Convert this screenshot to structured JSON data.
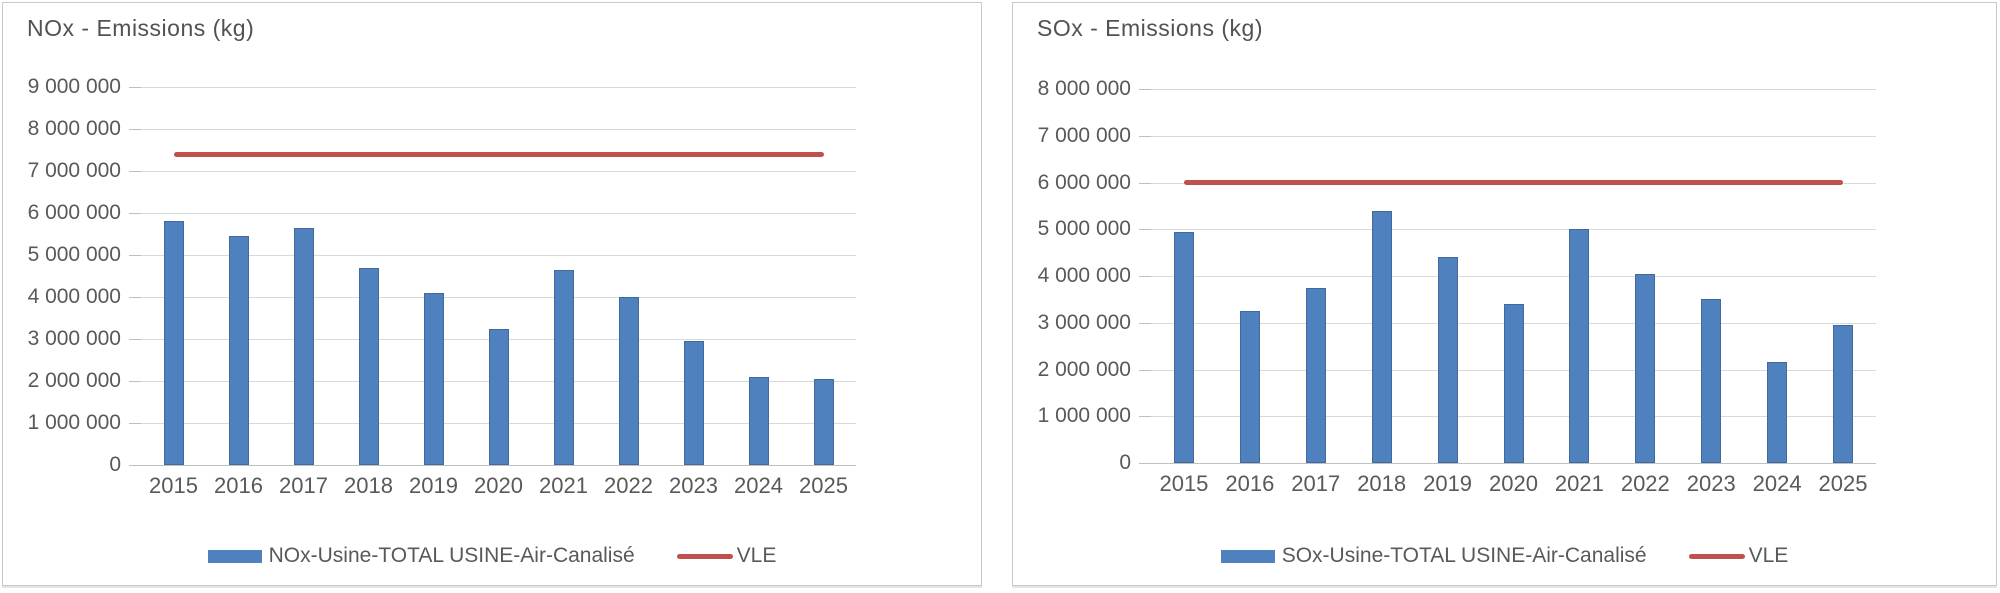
{
  "styles": {
    "bar_color": "#4E81BD",
    "line_color": "#C0504D",
    "grid_color": "#D9D9D9",
    "axis_color": "#BFBFBF",
    "text_color": "#595959"
  },
  "chart_data": [
    {
      "type": "bar",
      "title": "NOx - Emissions (kg)",
      "xlabel": "",
      "ylabel": "",
      "grid": true,
      "legend_position": "bottom",
      "categories": [
        "2015",
        "2016",
        "2017",
        "2018",
        "2019",
        "2020",
        "2021",
        "2022",
        "2023",
        "2024",
        "2025"
      ],
      "series": [
        {
          "name": "NOx-Usine-TOTAL USINE-Air-Canalisé",
          "type": "bar",
          "color": "#4E81BD",
          "values": [
            5800000,
            5450000,
            5650000,
            4700000,
            4100000,
            3250000,
            4650000,
            4000000,
            2950000,
            2100000,
            2050000
          ]
        },
        {
          "name": "VLE",
          "type": "line",
          "color": "#C0504D",
          "value": 7400000
        }
      ],
      "ylim": [
        0,
        9000000
      ],
      "ytick_step": 1000000,
      "ytick_labels": [
        "0",
        "1 000 000",
        "2 000 000",
        "3 000 000",
        "4 000 000",
        "5 000 000",
        "6 000 000",
        "7 000 000",
        "8 000 000",
        "9 000 000"
      ]
    },
    {
      "type": "bar",
      "title": "SOx - Emissions (kg)",
      "xlabel": "",
      "ylabel": "",
      "grid": true,
      "legend_position": "bottom",
      "categories": [
        "2015",
        "2016",
        "2017",
        "2018",
        "2019",
        "2020",
        "2021",
        "2022",
        "2023",
        "2024",
        "2025"
      ],
      "series": [
        {
          "name": "SOx-Usine-TOTAL USINE-Air-Canalisé",
          "type": "bar",
          "color": "#4E81BD",
          "values": [
            4950000,
            3250000,
            3750000,
            5400000,
            4400000,
            3400000,
            5000000,
            4050000,
            3500000,
            2150000,
            2950000
          ]
        },
        {
          "name": "VLE",
          "type": "line",
          "color": "#C0504D",
          "value": 6000000
        }
      ],
      "ylim": [
        0,
        8000000
      ],
      "ytick_step": 1000000,
      "ytick_labels": [
        "0",
        "1 000 000",
        "2 000 000",
        "3 000 000",
        "4 000 000",
        "5 000 000",
        "6 000 000",
        "7 000 000",
        "8 000 000"
      ]
    }
  ]
}
